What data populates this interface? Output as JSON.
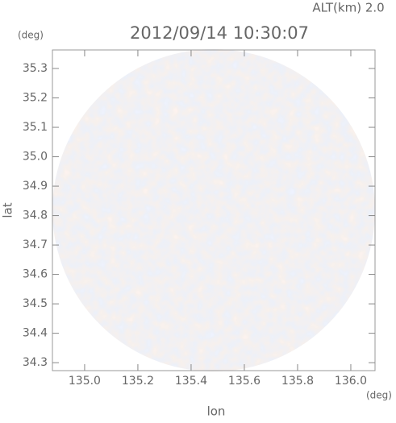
{
  "chart_data": {
    "type": "radar-field",
    "title": "2012/09/14 10:30:07",
    "altitude_label": "ALT(km) 2.0",
    "xlabel": "lon",
    "ylabel": "lat",
    "xunit": "(deg)",
    "yunit": "(deg)",
    "xlim": [
      134.879,
      136.091
    ],
    "ylim": [
      34.273,
      35.363
    ],
    "xticks": [
      {
        "value": 135,
        "label": "135.0"
      },
      135.2,
      135.4,
      135.6,
      135.8,
      {
        "value": 136,
        "label": "136.0"
      }
    ],
    "yticks": [
      34.3,
      34.4,
      34.5,
      34.6,
      34.7,
      34.8,
      34.9,
      {
        "value": 35,
        "label": "35.0"
      },
      35.1,
      35.2,
      35.3
    ]
  }
}
